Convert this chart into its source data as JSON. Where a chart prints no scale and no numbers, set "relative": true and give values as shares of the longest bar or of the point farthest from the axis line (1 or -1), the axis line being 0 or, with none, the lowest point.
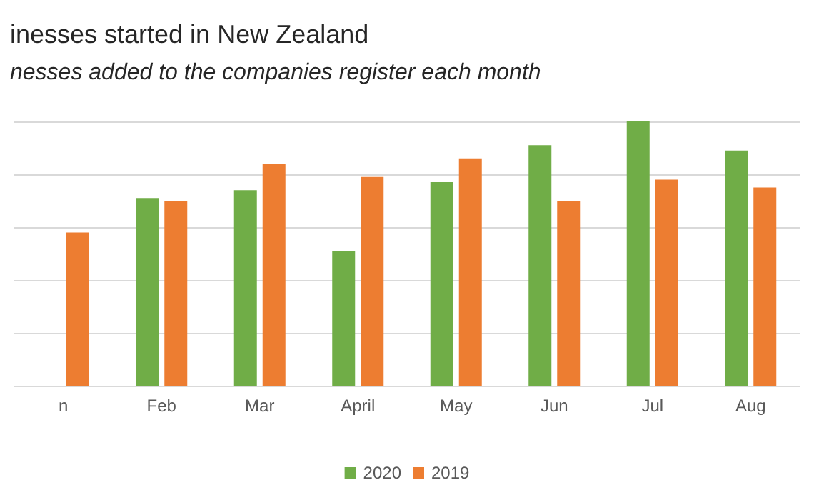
{
  "chart_data": {
    "type": "bar",
    "title": "inesses started in New Zealand",
    "subtitle": "nesses added to the companies register each month",
    "categories": [
      "n",
      "Feb",
      "Mar",
      "April",
      "May",
      "Jun",
      "Jul",
      "Aug"
    ],
    "series": [
      {
        "name": "2020",
        "color": "#70ad47",
        "values": [
          null,
          0.71,
          0.74,
          0.51,
          0.77,
          0.91,
          1,
          0.89
        ]
      },
      {
        "name": "2019",
        "color": "#ed7d31",
        "values": [
          0.58,
          0.7,
          0.84,
          0.79,
          0.86,
          0.7,
          0.78,
          0.75
        ]
      }
    ],
    "relative": true,
    "grid": "y",
    "legend": "bottom"
  }
}
